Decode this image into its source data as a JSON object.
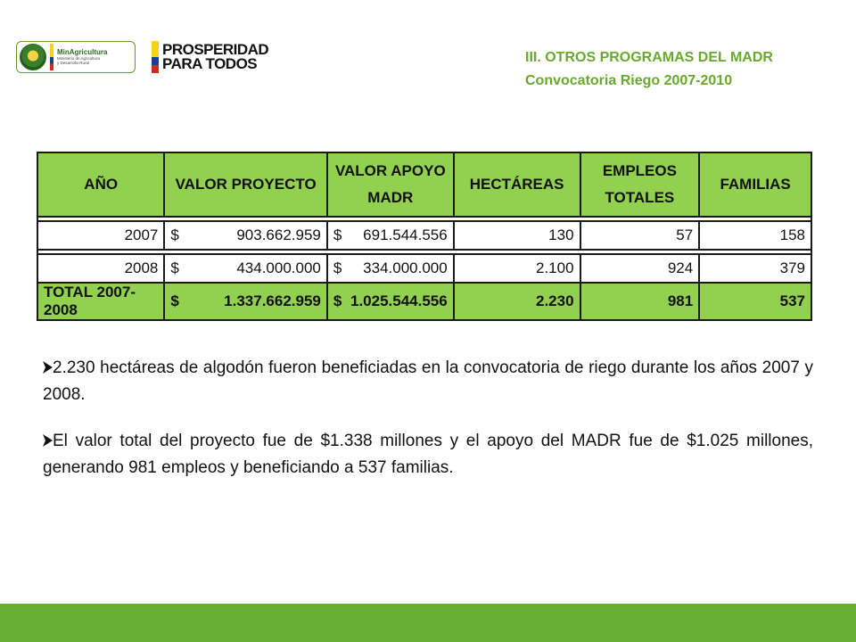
{
  "header": {
    "logo_min_line1": "MinAgricultura",
    "logo_min_line2": "Ministerio de Agricultura",
    "logo_min_line3": "y Desarrollo Rural",
    "logo_pp_line1": "PROSPERIDAD",
    "logo_pp_line2": "PARA TODOS",
    "title": "III. OTROS PROGRAMAS DEL MADR",
    "subtitle": "Convocatoria Riego 2007-2010"
  },
  "table": {
    "headers": {
      "year": "AÑO",
      "valor_proyecto": "VALOR PROYECTO",
      "valor_apoyo_l1": "VALOR APOYO",
      "valor_apoyo_l2": "MADR",
      "hectareas": "HECTÁREAS",
      "empleos_l1": "EMPLEOS",
      "empleos_l2": "TOTALES",
      "familias": "FAMILIAS"
    },
    "currency": "$",
    "rows": [
      {
        "year": "2007",
        "valor_proyecto": "903.662.959",
        "valor_apoyo": "691.544.556",
        "hectareas": "130",
        "empleos": "57",
        "familias": "158"
      },
      {
        "year": "2008",
        "valor_proyecto": "434.000.000",
        "valor_apoyo": "334.000.000",
        "hectareas": "2.100",
        "empleos": "924",
        "familias": "379"
      }
    ],
    "total": {
      "year": "TOTAL 2007-2008",
      "valor_proyecto": "1.337.662.959",
      "valor_apoyo": "1.025.544.556",
      "hectareas": "2.230",
      "empleos": "981",
      "familias": "537"
    }
  },
  "bullets": [
    "2.230 hectáreas de algodón fueron beneficiadas en la convocatoria de riego durante los años 2007 y 2008.",
    "El valor total del proyecto fue de $1.338 millones y el apoyo del MADR fue de $1.025 millones, generando 981 empleos y beneficiando a 537 familias."
  ],
  "colors": {
    "accent_green": "#92d050",
    "title_green": "#69a82f",
    "footer_green": "#67b035"
  }
}
